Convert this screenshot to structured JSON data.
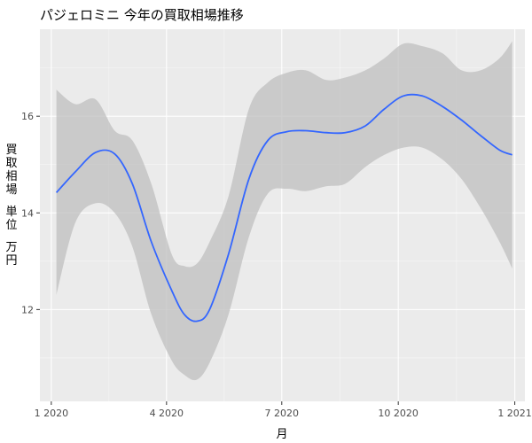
{
  "chart_data": {
    "type": "line",
    "title": "パジェロミニ 今年の買取相場推移",
    "xlabel": "月",
    "ylabel": "買取相場 単位 万円",
    "x_ticks": [
      "1 2020",
      "4 2020",
      "7 2020",
      "10 2020",
      "1 2021"
    ],
    "y_ticks": [
      12,
      14,
      16
    ],
    "xlim": [
      "2019-12-23",
      "2021-01-09"
    ],
    "ylim": [
      10.1,
      17.8
    ],
    "grid": true,
    "series": [
      {
        "x": [
          "2020-01-05",
          "2020-01-20",
          "2020-02-05",
          "2020-02-20",
          "2020-03-05",
          "2020-03-20",
          "2020-04-05",
          "2020-04-15",
          "2020-04-25",
          "2020-05-05",
          "2020-05-20",
          "2020-06-05",
          "2020-06-20",
          "2020-07-05",
          "2020-07-20",
          "2020-08-05",
          "2020-08-20",
          "2020-09-05",
          "2020-09-20",
          "2020-10-05",
          "2020-10-20",
          "2020-11-05",
          "2020-11-20",
          "2020-12-05",
          "2020-12-20",
          "2020-12-30"
        ],
        "y": [
          14.42,
          14.85,
          15.25,
          15.22,
          14.6,
          13.4,
          12.4,
          11.9,
          11.76,
          12.0,
          13.15,
          14.7,
          15.5,
          15.68,
          15.7,
          15.66,
          15.66,
          15.8,
          16.15,
          16.42,
          16.42,
          16.2,
          15.92,
          15.6,
          15.3,
          15.2
        ],
        "lower": [
          12.3,
          13.8,
          14.2,
          14.0,
          13.3,
          11.9,
          10.95,
          10.65,
          10.55,
          10.9,
          11.9,
          13.5,
          14.4,
          14.5,
          14.45,
          14.55,
          14.6,
          14.95,
          15.2,
          15.35,
          15.35,
          15.1,
          14.7,
          14.1,
          13.4,
          12.85
        ],
        "upper": [
          16.55,
          16.25,
          16.35,
          15.7,
          15.5,
          14.6,
          13.15,
          12.9,
          12.95,
          13.4,
          14.35,
          16.15,
          16.7,
          16.9,
          16.95,
          16.75,
          16.8,
          16.95,
          17.2,
          17.5,
          17.45,
          17.3,
          16.95,
          16.95,
          17.2,
          17.55
        ]
      }
    ]
  },
  "style": {
    "panel_bg": "#ebebeb",
    "grid_major": "#ffffff",
    "ribbon": "#bfbfbf",
    "line": "#3366ff"
  }
}
